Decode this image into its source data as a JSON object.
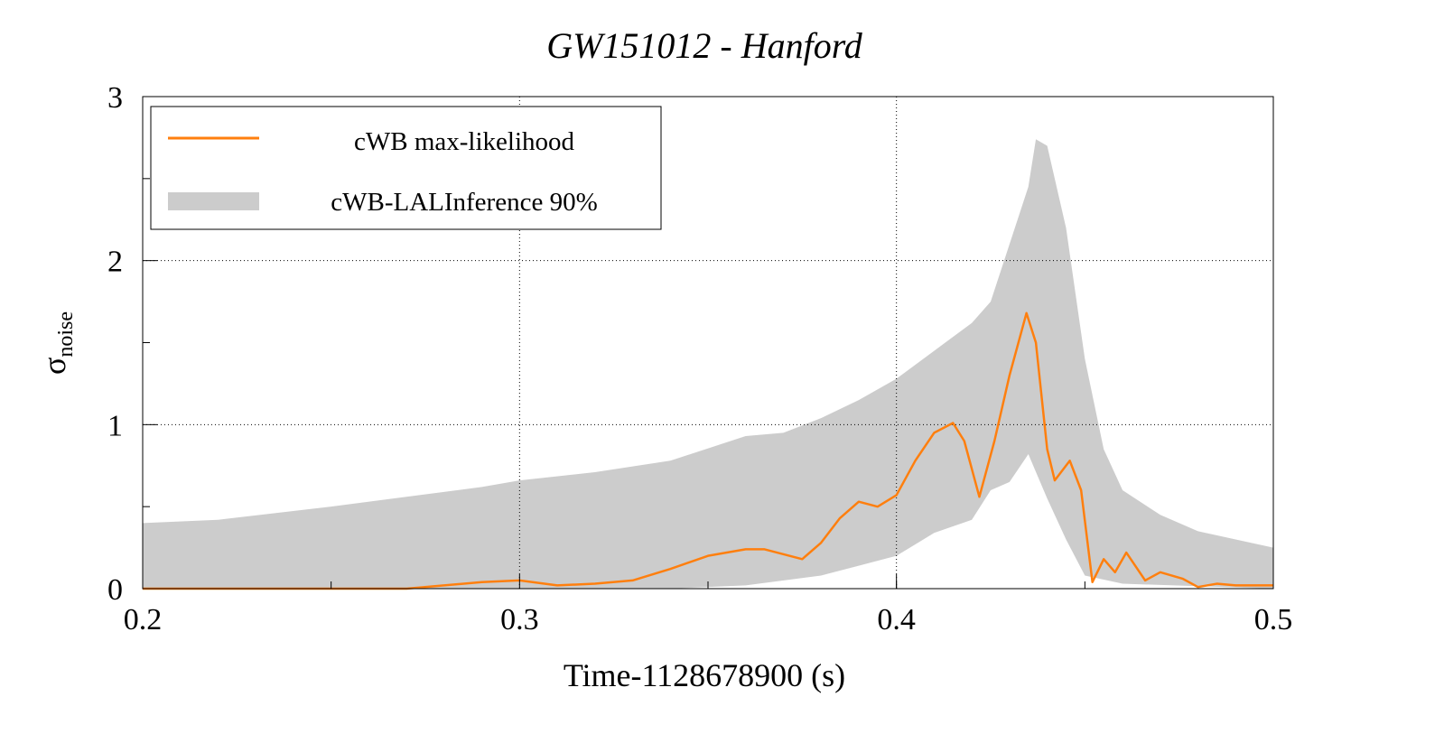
{
  "chart_data": {
    "type": "line",
    "title": "GW151012 - Hanford",
    "xlabel": "Time-1128678900 (s)",
    "ylabel": "σ",
    "ylabel_subscript": "noise",
    "xlim": [
      0.2,
      0.5
    ],
    "ylim": [
      0,
      3
    ],
    "xticks": [
      "0.2",
      "0.3",
      "0.4",
      "0.5"
    ],
    "yticks": [
      "0",
      "1",
      "2",
      "3"
    ],
    "grid": true,
    "legend_placement": "top-left",
    "colors": {
      "line": "#ff7f0e",
      "band": "#cccccc"
    },
    "series": [
      {
        "name": "cWB max-likelihood",
        "kind": "line",
        "x": [
          0.2,
          0.27,
          0.29,
          0.3,
          0.31,
          0.32,
          0.33,
          0.34,
          0.35,
          0.36,
          0.365,
          0.375,
          0.38,
          0.385,
          0.39,
          0.395,
          0.4,
          0.405,
          0.41,
          0.415,
          0.418,
          0.422,
          0.426,
          0.43,
          0.4345,
          0.437,
          0.44,
          0.442,
          0.446,
          0.449,
          0.452,
          0.455,
          0.458,
          0.461,
          0.466,
          0.47,
          0.476,
          0.48,
          0.485,
          0.49,
          0.5
        ],
        "y": [
          0,
          0,
          0.04,
          0.05,
          0.02,
          0.03,
          0.05,
          0.12,
          0.2,
          0.24,
          0.24,
          0.18,
          0.28,
          0.43,
          0.53,
          0.5,
          0.57,
          0.78,
          0.95,
          1.01,
          0.9,
          0.56,
          0.9,
          1.3,
          1.68,
          1.5,
          0.85,
          0.66,
          0.78,
          0.6,
          0.04,
          0.18,
          0.1,
          0.22,
          0.05,
          0.1,
          0.06,
          0.01,
          0.03,
          0.02,
          0.02
        ]
      },
      {
        "name": "cWB-LALInference 90%",
        "kind": "band",
        "x_upper": [
          0.2,
          0.22,
          0.25,
          0.27,
          0.29,
          0.3,
          0.32,
          0.34,
          0.36,
          0.37,
          0.38,
          0.39,
          0.4,
          0.41,
          0.42,
          0.425,
          0.43,
          0.435,
          0.437,
          0.44,
          0.445,
          0.45,
          0.455,
          0.46,
          0.47,
          0.48,
          0.49,
          0.5
        ],
        "upper": [
          0.4,
          0.42,
          0.5,
          0.56,
          0.62,
          0.66,
          0.71,
          0.78,
          0.93,
          0.95,
          1.04,
          1.15,
          1.28,
          1.45,
          1.62,
          1.75,
          2.1,
          2.45,
          2.74,
          2.7,
          2.2,
          1.4,
          0.85,
          0.6,
          0.45,
          0.35,
          0.3,
          0.25
        ],
        "x_lower": [
          0.2,
          0.34,
          0.36,
          0.38,
          0.39,
          0.4,
          0.41,
          0.42,
          0.425,
          0.43,
          0.435,
          0.44,
          0.445,
          0.45,
          0.46,
          0.5
        ],
        "lower": [
          0,
          0,
          0.02,
          0.08,
          0.14,
          0.2,
          0.34,
          0.42,
          0.6,
          0.65,
          0.82,
          0.55,
          0.3,
          0.08,
          0.03,
          0
        ]
      }
    ]
  }
}
